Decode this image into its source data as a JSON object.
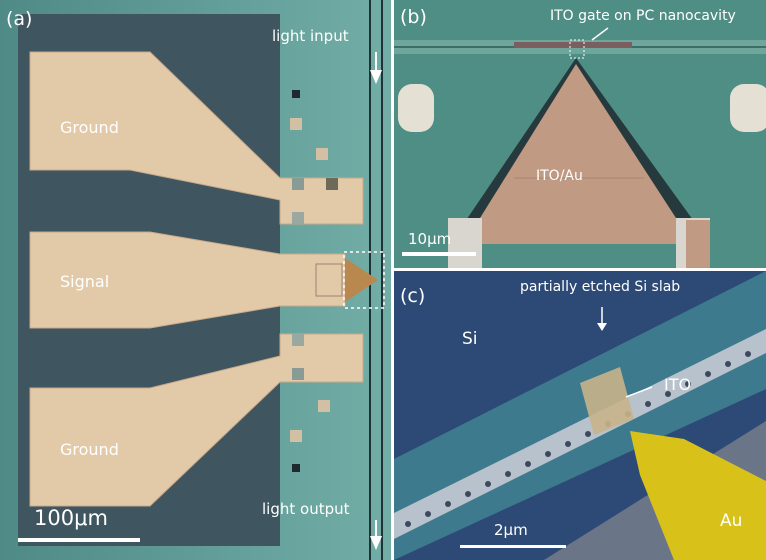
{
  "panel_a": {
    "tag": "(a)",
    "ground_top": "Ground",
    "signal": "Signal",
    "ground_bottom": "Ground",
    "light_input": "light input",
    "light_output": "light output",
    "scale_bar": "100μm"
  },
  "panel_b": {
    "tag": "(b)",
    "annotation": "ITO gate on PC nanocavity",
    "material_label": "ITO/Au",
    "scale_bar": "10μm"
  },
  "panel_c": {
    "tag": "(c)",
    "annotation": "partially etched Si slab",
    "si_label": "Si",
    "ito_label": "ITO",
    "au_label": "Au",
    "scale_bar": "2μm"
  },
  "colors": {
    "substrate_teal": "#5e9c96",
    "oxide_dark": "#3f5560",
    "pad_gold": "#e2c9a8",
    "sem_blue": "#2d4a76",
    "gold_highlight": "#d8c21a"
  }
}
